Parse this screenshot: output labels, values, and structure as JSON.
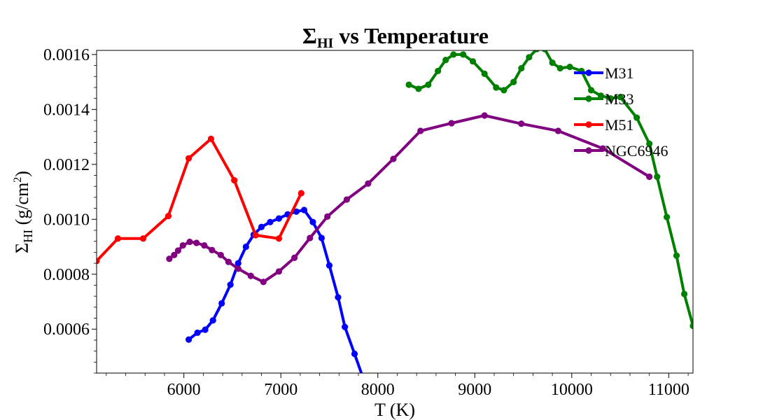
{
  "chart_data": {
    "type": "line",
    "title": "Σ_HI vs Temperature",
    "title_parts": {
      "sigma": "Σ",
      "sub": "HI",
      "rest": " vs Temperature"
    },
    "xlabel": "T (K)",
    "ylabel": "Σ_HI (g/cm²)",
    "ylabel_parts": {
      "sigma": "Σ",
      "sub": "HI",
      "unit": " (g/cm",
      "sup": "2",
      "close": ")"
    },
    "xlim": [
      5100,
      11250
    ],
    "ylim": [
      0.00044,
      0.001615
    ],
    "xticks": [
      6000,
      7000,
      8000,
      9000,
      10000,
      11000
    ],
    "xtick_labels": [
      "6000",
      "7000",
      "8000",
      "9000",
      "10000",
      "11000"
    ],
    "yticks": [
      0.0006,
      0.0008,
      0.001,
      0.0012,
      0.0014,
      0.0016
    ],
    "ytick_labels": [
      "0.0006",
      "0.0008",
      "0.0010",
      "0.0012",
      "0.0014",
      "0.0016"
    ],
    "grid": false,
    "legend_position": "top-right",
    "series": [
      {
        "name": "M31",
        "color": "#0000ff",
        "x": [
          6050,
          6140,
          6220,
          6300,
          6390,
          6480,
          6560,
          6640,
          6720,
          6800,
          6890,
          6980,
          7070,
          7160,
          7240,
          7330,
          7420,
          7500,
          7590,
          7660,
          7760,
          7840,
          7860
        ],
        "y": [
          0.000562,
          0.000587,
          0.000598,
          0.000632,
          0.000694,
          0.000762,
          0.00084,
          0.0009,
          0.000944,
          0.000972,
          0.00099,
          0.001003,
          0.001018,
          0.001028,
          0.001034,
          0.00099,
          0.000932,
          0.000832,
          0.000716,
          0.000608,
          0.00051,
          0.00043,
          0.00042
        ]
      },
      {
        "name": "M33",
        "color": "#008000",
        "x": [
          8320,
          8420,
          8520,
          8620,
          8700,
          8780,
          8880,
          8980,
          9100,
          9220,
          9300,
          9400,
          9480,
          9560,
          9640,
          9720,
          9800,
          9880,
          9980,
          10100,
          10200,
          10300,
          10400,
          10500,
          10670,
          10800,
          10880,
          10980,
          11080,
          11160,
          11250
        ],
        "y": [
          0.00149,
          0.001475,
          0.00149,
          0.00154,
          0.00158,
          0.0016,
          0.0016,
          0.001575,
          0.00153,
          0.00148,
          0.00147,
          0.0015,
          0.00155,
          0.00159,
          0.00162,
          0.00162,
          0.00157,
          0.00155,
          0.001555,
          0.00154,
          0.00147,
          0.00145,
          0.00144,
          0.001445,
          0.00137,
          0.001275,
          0.001155,
          0.001008,
          0.000868,
          0.000728,
          0.000612
        ]
      },
      {
        "name": "M51",
        "color": "#ff0000",
        "x": [
          5100,
          5320,
          5580,
          5840,
          6050,
          6280,
          6520,
          6740,
          6980,
          7210
        ],
        "y": [
          0.000848,
          0.00093,
          0.00093,
          0.001012,
          0.001222,
          0.001293,
          0.001142,
          0.000942,
          0.00093,
          0.001095
        ]
      },
      {
        "name": "NGC6946",
        "color": "#800080",
        "x": [
          5850,
          5900,
          5940,
          5990,
          6060,
          6130,
          6210,
          6290,
          6380,
          6460,
          6560,
          6690,
          6820,
          6980,
          7140,
          7300,
          7480,
          7680,
          7900,
          8160,
          8440,
          8760,
          9100,
          9480,
          9860,
          10320,
          10800
        ],
        "y": [
          0.000856,
          0.00087,
          0.000886,
          0.000905,
          0.000918,
          0.000914,
          0.000905,
          0.000888,
          0.00087,
          0.000845,
          0.00082,
          0.000794,
          0.000772,
          0.00081,
          0.00086,
          0.000932,
          0.00101,
          0.001072,
          0.00113,
          0.00122,
          0.001322,
          0.00135,
          0.001378,
          0.001348,
          0.001322,
          0.001258,
          0.001155
        ]
      }
    ]
  }
}
